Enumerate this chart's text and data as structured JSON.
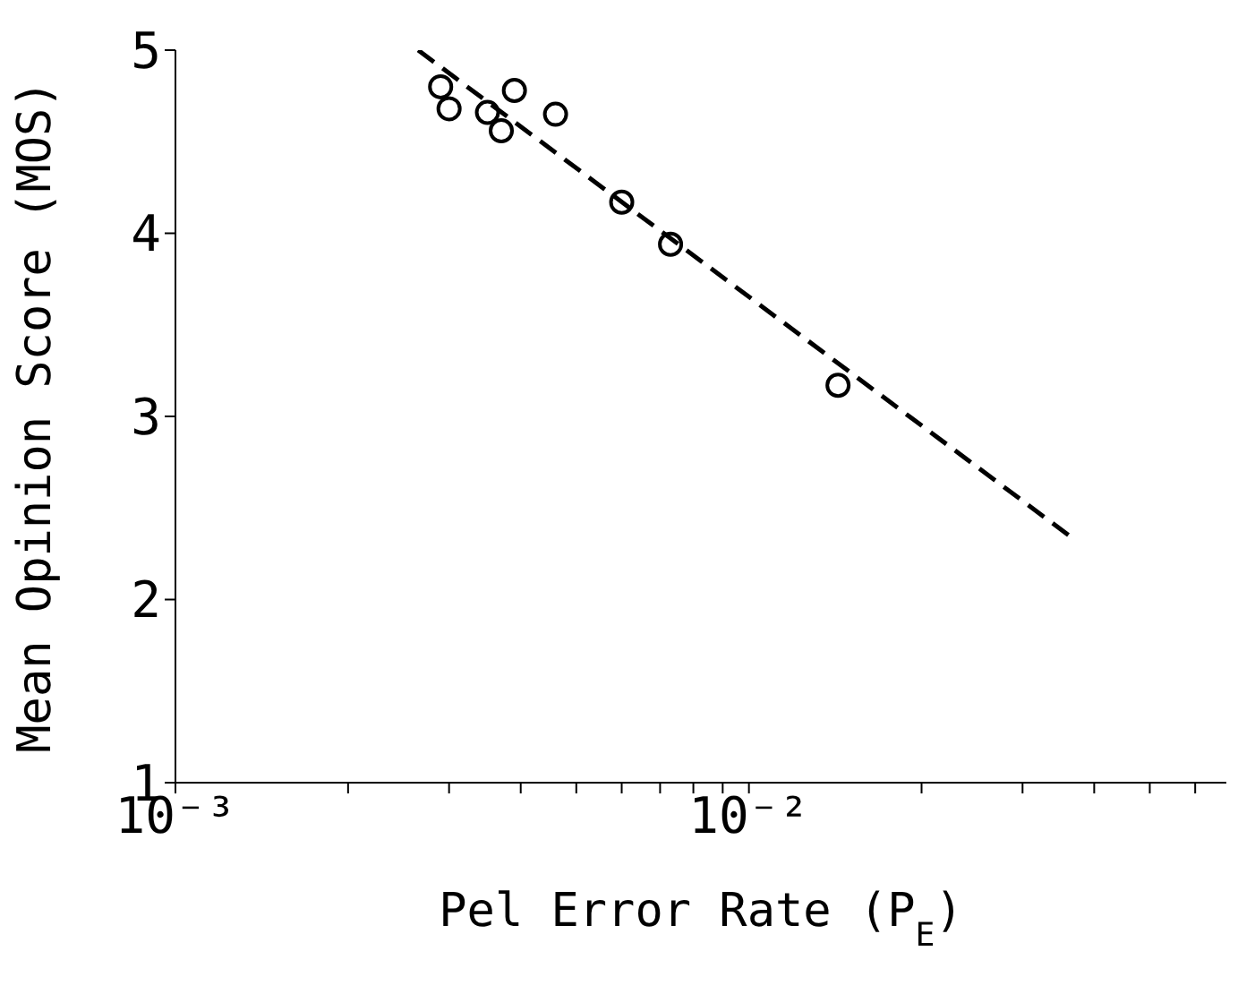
{
  "chart_data": {
    "type": "scatter",
    "xlabel": "Pel Error Rate (P$_{E}$)",
    "ylabel": "Mean Opinion Score (MOS)",
    "log": "x",
    "xlim": [
      0.001,
      0.068
    ],
    "ylim": [
      1,
      5
    ],
    "xticks": [
      {
        "value": 0.001,
        "label": "10⁻³"
      },
      {
        "value": 0.002,
        "label": null
      },
      {
        "value": 0.003,
        "label": null
      },
      {
        "value": 0.004,
        "label": null
      },
      {
        "value": 0.005,
        "label": null
      },
      {
        "value": 0.006,
        "label": null
      },
      {
        "value": 0.007,
        "label": null
      },
      {
        "value": 0.008,
        "label": null
      },
      {
        "value": 0.009,
        "label": null
      },
      {
        "value": 0.01,
        "label": "10⁻²"
      },
      {
        "value": 0.02,
        "label": null
      },
      {
        "value": 0.03,
        "label": null
      },
      {
        "value": 0.04,
        "label": null
      },
      {
        "value": 0.05,
        "label": null
      },
      {
        "value": 0.06,
        "label": null
      }
    ],
    "yticks": [
      1,
      2,
      3,
      4,
      5
    ],
    "grid": false,
    "legend": false,
    "marker": "circle",
    "series": [
      {
        "color": "#000000",
        "x": [
          0.0029,
          0.003,
          0.0035,
          0.0037,
          0.0039,
          0.0046,
          0.006,
          0.0073,
          0.0143
        ],
        "values": [
          4.8,
          4.68,
          4.66,
          4.56,
          4.78,
          4.65,
          4.17,
          3.94,
          3.17
        ]
      },
      {
        "type": "line",
        "color": "#000000",
        "line_style": "dashed",
        "marker": "none",
        "x": [
          0.00265,
          0.0365
        ],
        "values": [
          5.0,
          2.34
        ]
      }
    ]
  }
}
